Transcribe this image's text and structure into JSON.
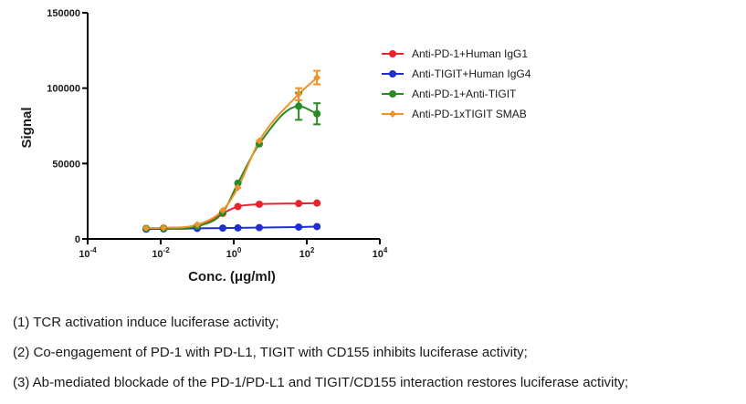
{
  "chart_data": {
    "type": "scatter",
    "title": "",
    "xlabel": "Conc. (μg/ml)",
    "ylabel": "Signal",
    "xscale": "log",
    "xlim": [
      0.0001,
      10000
    ],
    "ylim": [
      0,
      150000
    ],
    "x_ticks": [
      {
        "base": "10",
        "exp": "-4"
      },
      {
        "base": "10",
        "exp": "-2"
      },
      {
        "base": "10",
        "exp": "0"
      },
      {
        "base": "10",
        "exp": "2"
      },
      {
        "base": "10",
        "exp": "4"
      }
    ],
    "y_ticks": [
      "0",
      "50000",
      "100000",
      "150000"
    ],
    "legend_position": "top-right",
    "grid": false,
    "x": [
      0.004,
      0.012,
      0.1,
      0.5,
      1.3,
      5,
      60,
      190
    ],
    "series": [
      {
        "name": "Anti-PD-1+Human IgG1",
        "color": "#e8232a",
        "marker": "circle",
        "values": [
          6800,
          7000,
          8000,
          17000,
          21500,
          23000,
          23500,
          23800
        ],
        "errors": [
          0,
          0,
          0,
          0,
          0,
          0,
          0,
          0
        ]
      },
      {
        "name": "Anti-TIGIT+Human IgG4",
        "color": "#1f2dd4",
        "marker": "circle",
        "values": [
          6500,
          6700,
          7000,
          7200,
          7300,
          7500,
          7900,
          8200
        ],
        "errors": [
          0,
          0,
          0,
          0,
          0,
          0,
          0,
          0
        ]
      },
      {
        "name": "Anti-PD-1+Anti-TIGIT",
        "color": "#2a8a24",
        "marker": "circle",
        "values": [
          7000,
          7200,
          8500,
          17500,
          37000,
          63000,
          88000,
          83000
        ],
        "errors": [
          0,
          0,
          0,
          0,
          0,
          0,
          9000,
          7000
        ]
      },
      {
        "name": "Anti-PD-1xTIGIT SMAB",
        "color": "#f0922a",
        "marker": "diamond",
        "values": [
          7200,
          7400,
          9500,
          19000,
          34000,
          65000,
          96000,
          107000
        ],
        "errors": [
          0,
          0,
          0,
          0,
          0,
          0,
          4000,
          4500
        ]
      }
    ]
  },
  "notes": [
    "(1) TCR activation induce luciferase activity;",
    "(2) Co-engagement of PD-1 with PD-L1, TIGIT with CD155 inhibits luciferase activity;",
    "(3) Ab-mediated blockade of the PD-1/PD-L1 and TIGIT/CD155 interaction restores luciferase activity;"
  ]
}
